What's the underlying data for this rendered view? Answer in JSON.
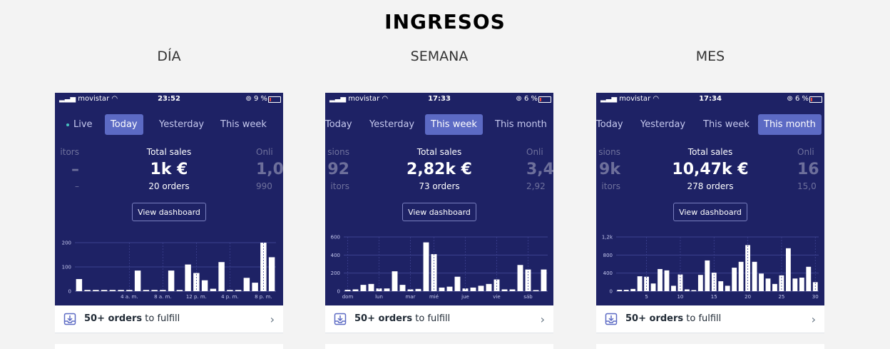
{
  "title": "INGRESOS",
  "columns": [
    {
      "heading": "DÍA",
      "status": {
        "carrier": "movistar",
        "time": "23:52",
        "battery": "9 %"
      },
      "tabs": [
        {
          "label": "Live",
          "live": true
        },
        {
          "label": "Today",
          "active": true
        },
        {
          "label": "Yesterday"
        },
        {
          "label": "This week"
        }
      ],
      "metrics": {
        "left": {
          "label": "itors",
          "value": "–",
          "sub": "–"
        },
        "center": {
          "label": "Total sales",
          "value": "1k €",
          "sub": "20 orders"
        },
        "right": {
          "label": "Onli",
          "value": "1,0",
          "sub": "990"
        }
      },
      "dashboard_button": "View dashboard",
      "chart_data": {
        "type": "bar",
        "y_ticks": [
          "200",
          "100",
          "0"
        ],
        "ylim": [
          0,
          200
        ],
        "x_labels": [
          "4 a. m.",
          "8 a. m.",
          "12 p. m.",
          "4 p. m.",
          "8 p. m."
        ],
        "values": [
          50,
          5,
          5,
          5,
          5,
          5,
          5,
          85,
          5,
          5,
          5,
          85,
          5,
          110,
          75,
          45,
          10,
          120,
          5,
          5,
          55,
          35,
          200,
          140
        ]
      },
      "footer": {
        "bold": "50+ orders",
        "rest": " to fulfill"
      }
    },
    {
      "heading": "SEMANA",
      "status": {
        "carrier": "movistar",
        "time": "17:33",
        "battery": "6 %"
      },
      "tabs": [
        {
          "label": "Today"
        },
        {
          "label": "Yesterday"
        },
        {
          "label": "This week",
          "active": true
        },
        {
          "label": "This month"
        }
      ],
      "metrics": {
        "left": {
          "label": "sions",
          "value": "92",
          "sub": "itors"
        },
        "center": {
          "label": "Total sales",
          "value": "2,82k €",
          "sub": "73 orders"
        },
        "right": {
          "label": "Onli",
          "value": "3,4",
          "sub": "2,92"
        }
      },
      "dashboard_button": "View dashboard",
      "chart_data": {
        "type": "bar",
        "y_ticks": [
          "600",
          "400",
          "200",
          "0"
        ],
        "ylim": [
          0,
          600
        ],
        "x_labels": [
          "dom",
          "lun",
          "mar",
          "mié",
          "jue",
          "vie",
          "sáb"
        ],
        "values": [
          15,
          20,
          70,
          80,
          30,
          30,
          220,
          70,
          20,
          25,
          540,
          410,
          40,
          50,
          160,
          30,
          40,
          60,
          80,
          130,
          20,
          20,
          290,
          240,
          10,
          240
        ]
      },
      "footer": {
        "bold": "50+ orders",
        "rest": " to fulfill"
      }
    },
    {
      "heading": "MES",
      "status": {
        "carrier": "movistar",
        "time": "17:34",
        "battery": "6 %"
      },
      "tabs": [
        {
          "label": "Today"
        },
        {
          "label": "Yesterday"
        },
        {
          "label": "This week"
        },
        {
          "label": "This month",
          "active": true
        }
      ],
      "metrics": {
        "left": {
          "label": "sions",
          "value": "9k",
          "sub": "itors"
        },
        "center": {
          "label": "Total sales",
          "value": "10,47k €",
          "sub": "278 orders"
        },
        "right": {
          "label": "Onli",
          "value": "16",
          "sub": "15,0"
        }
      },
      "dashboard_button": "View dashboard",
      "chart_data": {
        "type": "bar",
        "y_ticks": [
          "1,2k",
          "800",
          "400",
          "0"
        ],
        "ylim": [
          0,
          1200
        ],
        "x_labels": [
          "5",
          "10",
          "15",
          "20",
          "25",
          "30"
        ],
        "values": [
          30,
          30,
          50,
          330,
          320,
          170,
          490,
          460,
          120,
          370,
          40,
          20,
          360,
          680,
          410,
          220,
          120,
          520,
          650,
          1020,
          650,
          390,
          280,
          160,
          350,
          950,
          280,
          300,
          540,
          200
        ]
      },
      "footer": {
        "bold": "50+ orders",
        "rest": " to fulfill"
      }
    }
  ]
}
